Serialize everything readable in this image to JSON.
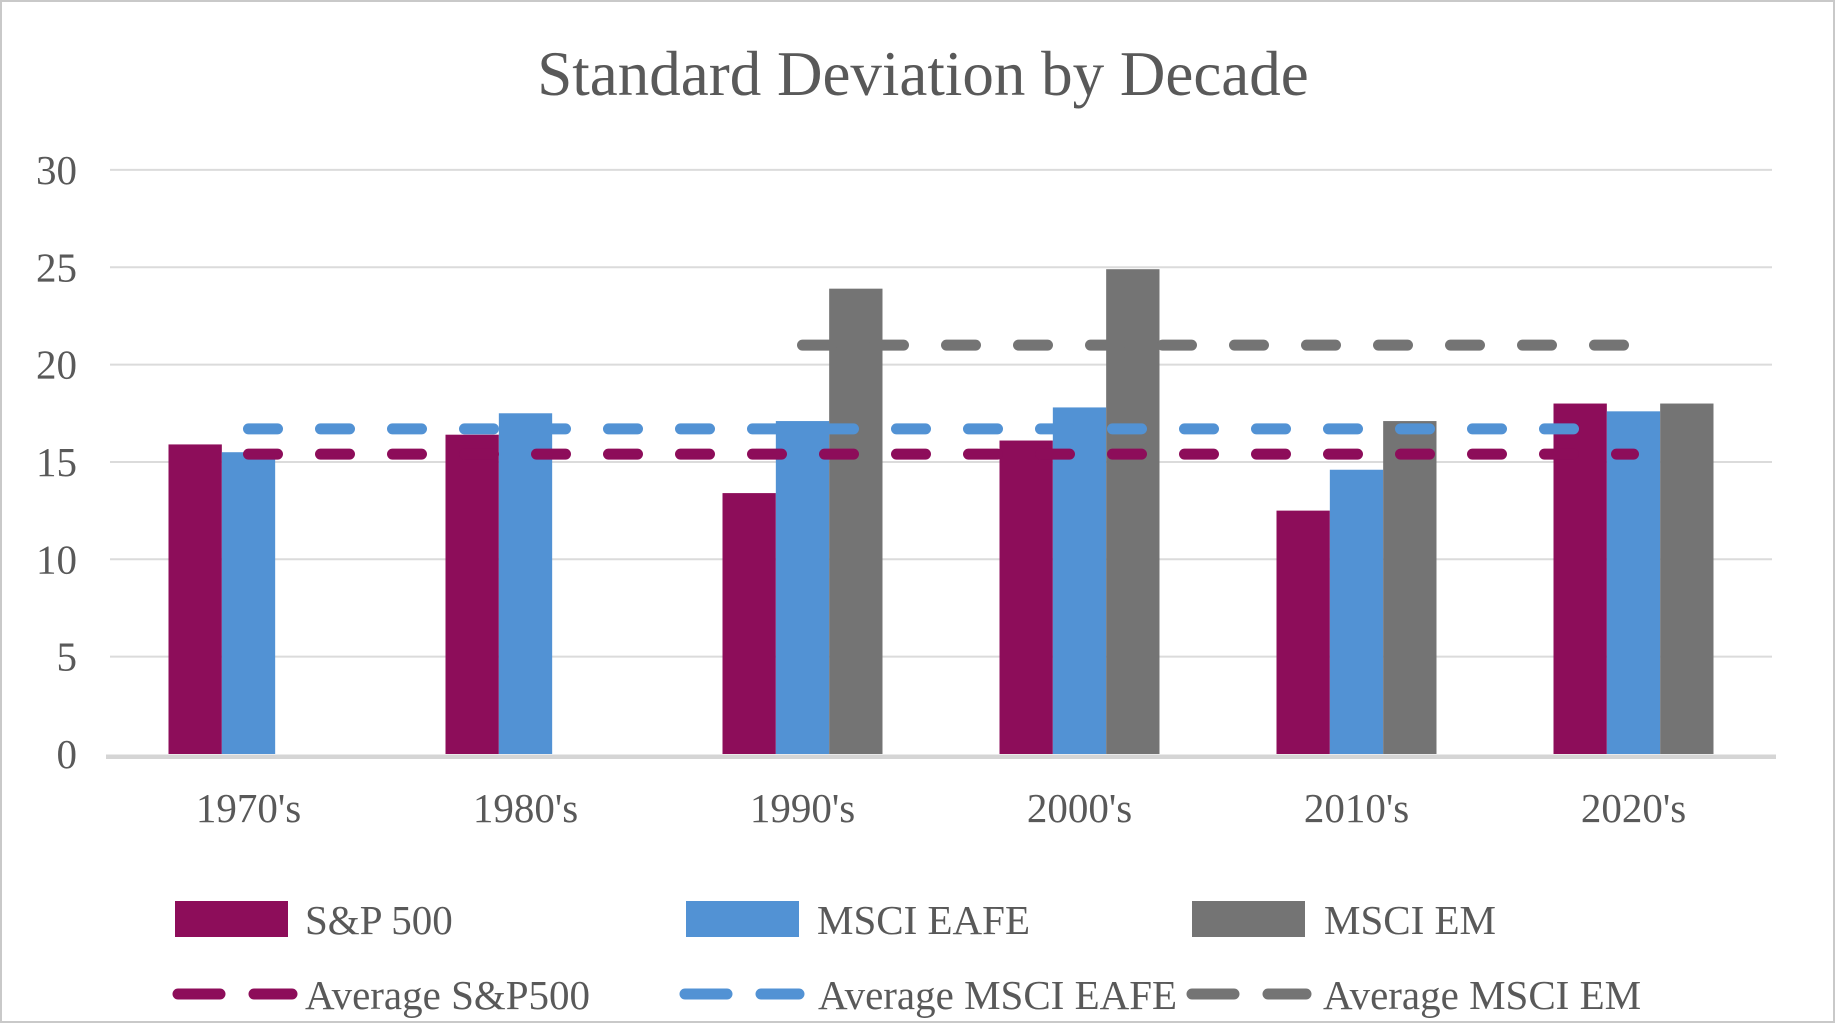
{
  "title": "Standard Deviation by Decade",
  "chart_data": {
    "type": "bar",
    "title": "Standard Deviation by Decade",
    "categories": [
      "1970's",
      "1980's",
      "1990's",
      "2000's",
      "2010's",
      "2020's"
    ],
    "series": [
      {
        "name": "S&P 500",
        "color": "#8D0D5A",
        "values": [
          15.9,
          16.4,
          13.4,
          16.1,
          12.5,
          18.0
        ]
      },
      {
        "name": "MSCI EAFE",
        "color": "#5292D4",
        "values": [
          15.5,
          17.5,
          17.1,
          17.8,
          14.6,
          17.6
        ]
      },
      {
        "name": "MSCI EM",
        "color": "#747474",
        "values": [
          null,
          null,
          23.9,
          24.9,
          17.1,
          18.0
        ]
      }
    ],
    "average_lines": [
      {
        "name": "Average S&P500",
        "color": "#8D0D5A",
        "value": 15.4,
        "from_category": 0
      },
      {
        "name": "Average MSCI EAFE",
        "color": "#5292D4",
        "value": 16.7,
        "from_category": 0
      },
      {
        "name": "Average MSCI EM",
        "color": "#747474",
        "value": 21.0,
        "from_category": 2
      }
    ],
    "ylim": [
      0,
      30
    ],
    "ytick_step": 5,
    "yticks": [
      0,
      5,
      10,
      15,
      20,
      25,
      30
    ],
    "grid": true,
    "legend_position": "bottom",
    "colors": {
      "grid_line": "#DBDBDB",
      "axis_line": "#D5D5D5",
      "text": "#595959"
    }
  }
}
